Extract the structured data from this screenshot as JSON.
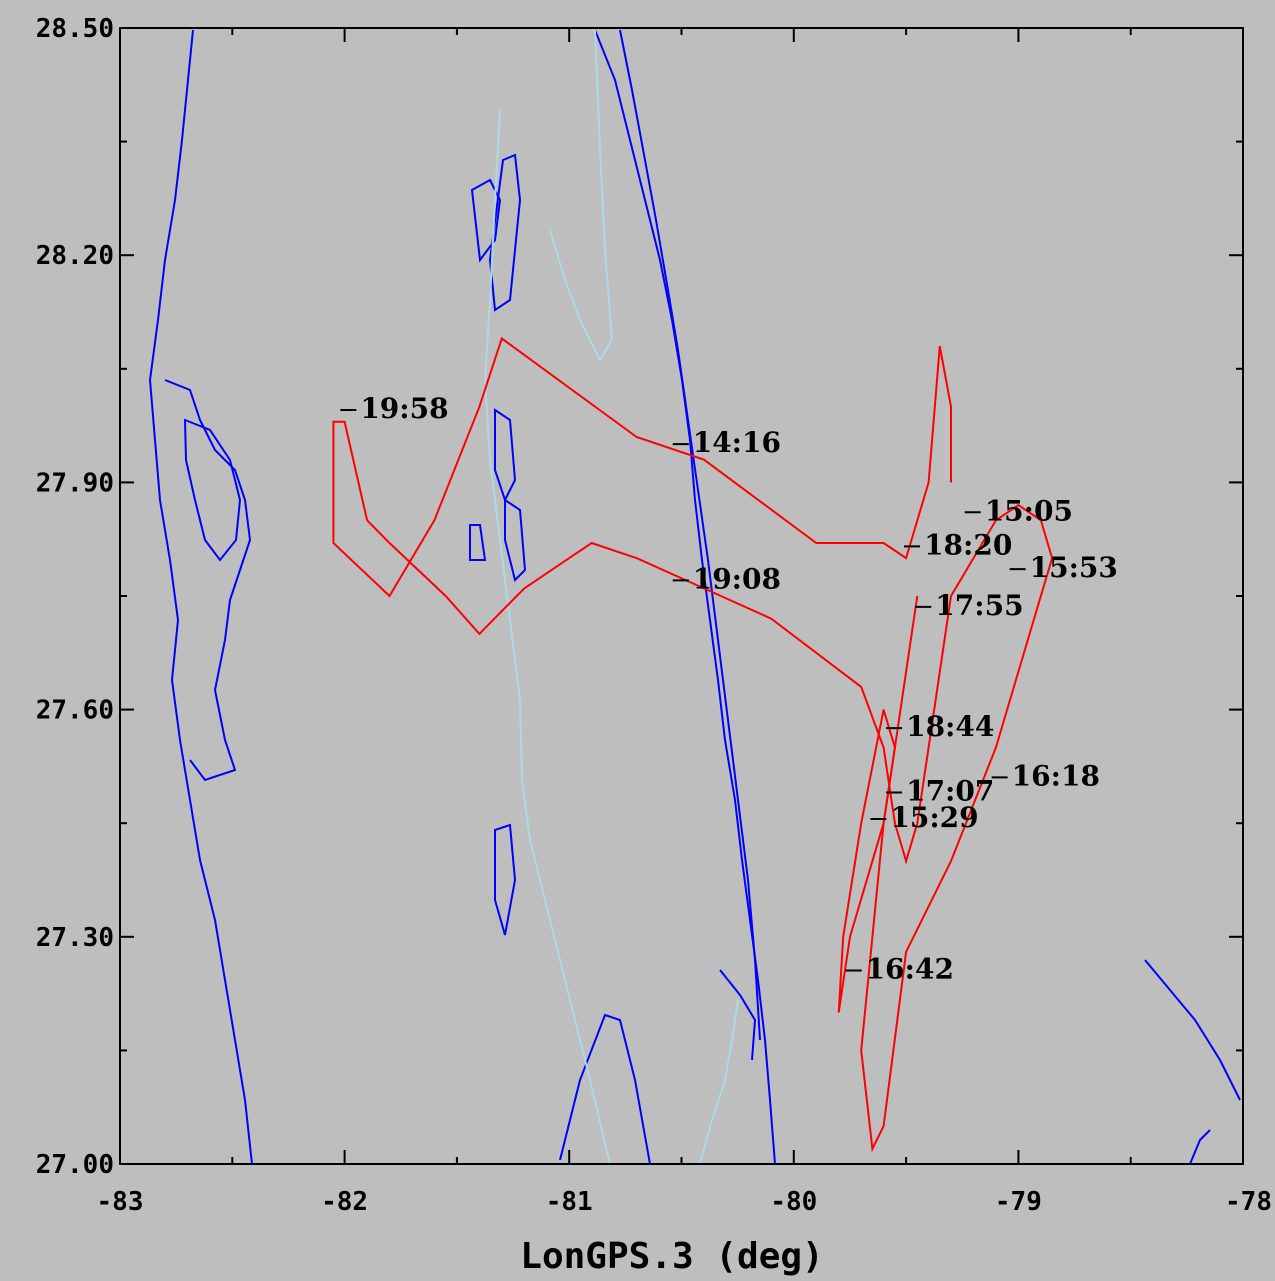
{
  "chart_data": {
    "type": "line",
    "xlabel": "LonGPS.3 (deg)",
    "ylabel": "",
    "xlim": [
      -83,
      -78
    ],
    "ylim": [
      27.0,
      28.5
    ],
    "x_ticks": [
      "-83",
      "-82",
      "-81",
      "-80",
      "-79",
      "-78"
    ],
    "y_ticks": [
      "27.00",
      "27.30",
      "27.60",
      "27.90",
      "28.20",
      "28.50"
    ],
    "x_tick_values": [
      -83,
      -82,
      -81,
      -80,
      -79,
      -78
    ],
    "y_tick_values": [
      27.0,
      27.3,
      27.6,
      27.9,
      28.2,
      28.5
    ],
    "background": "#bebebe",
    "colors": {
      "track": "#ff0000",
      "coast": "#0000ff",
      "light_coast": "#add8e6",
      "labels": "#000000"
    },
    "series": [
      {
        "color": "#ff0000",
        "x": [
          -79.3,
          -79.3,
          -79.35,
          -79.4,
          -79.5,
          -79.6,
          -79.9,
          -80.4,
          -80.7,
          -81.3,
          -81.4,
          -81.6,
          -81.8,
          -82.05,
          -82.05,
          -82.0,
          -81.9,
          -81.8,
          -81.55,
          -81.4,
          -81.3,
          -81.2,
          -81.0,
          -80.9,
          -80.7,
          -80.4,
          -80.1,
          -79.7,
          -79.6,
          -79.55,
          -79.5,
          -79.45,
          -79.4,
          -79.35,
          -79.3,
          -79.2,
          -79.1,
          -79.0,
          -78.9,
          -78.85,
          -78.95,
          -79.1,
          -79.3,
          -79.5,
          -79.6,
          -79.65,
          -79.7,
          -79.65,
          -79.6,
          -79.55,
          -79.5,
          -79.45
        ],
        "y": [
          27.9,
          28.0,
          28.08,
          27.9,
          27.8,
          27.82,
          27.82,
          27.93,
          27.96,
          28.09,
          28.0,
          27.85,
          27.75,
          27.82,
          27.98,
          27.98,
          27.85,
          27.82,
          27.75,
          27.7,
          27.73,
          27.76,
          27.8,
          27.82,
          27.8,
          27.76,
          27.72,
          27.63,
          27.55,
          27.45,
          27.4,
          27.45,
          27.55,
          27.65,
          27.75,
          27.8,
          27.85,
          27.87,
          27.85,
          27.8,
          27.7,
          27.55,
          27.4,
          27.28,
          27.05,
          27.02,
          27.15,
          27.3,
          27.45,
          27.55,
          27.65,
          27.75
        ]
      },
      {
        "color": "#ff0000",
        "x": [
          -79.8,
          -79.75,
          -79.7,
          -79.6,
          -79.55,
          -79.6,
          -79.7,
          -79.78,
          -79.8
        ],
        "y": [
          27.2,
          27.3,
          27.35,
          27.45,
          27.55,
          27.6,
          27.45,
          27.3,
          27.2
        ]
      }
    ],
    "annotations": [
      {
        "text": "14:16",
        "x": -80.45,
        "y": 27.94
      },
      {
        "text": "19:08",
        "x": -80.45,
        "y": 27.76
      },
      {
        "text": "19:58",
        "x": -81.93,
        "y": 27.985
      },
      {
        "text": "15:05",
        "x": -79.15,
        "y": 27.85
      },
      {
        "text": "18:20",
        "x": -79.42,
        "y": 27.805
      },
      {
        "text": "15:53",
        "x": -78.95,
        "y": 27.775
      },
      {
        "text": "17:55",
        "x": -79.37,
        "y": 27.725
      },
      {
        "text": "18:44",
        "x": -79.5,
        "y": 27.565
      },
      {
        "text": "16:18",
        "x": -79.03,
        "y": 27.5
      },
      {
        "text": "17:07",
        "x": -79.5,
        "y": 27.48
      },
      {
        "text": "15:29",
        "x": -79.57,
        "y": 27.445
      },
      {
        "text": "16:42",
        "x": -79.68,
        "y": 27.245
      }
    ],
    "grid": false
  }
}
